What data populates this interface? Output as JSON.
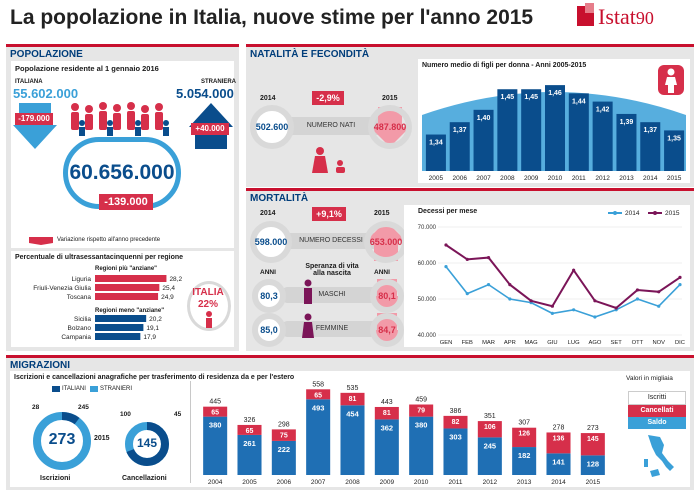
{
  "title": "La popolazione in Italia, nuove stime per l'anno 2015",
  "logo": {
    "text": "Istat",
    "mark": "90"
  },
  "popolazione": {
    "header": "POPOLAZIONE",
    "subtitle": "Popolazione residente al 1 gennaio 2016",
    "italiana_label": "ITALIANA",
    "italiana_value": "55.602.000",
    "italiana_change": "-179.000",
    "straniera_label": "STRANIERA",
    "straniera_value": "5.054.000",
    "straniera_change": "+40.000",
    "total": "60.656.000",
    "total_change": "-139.000",
    "legend": "Variazione rispetto all'anno precedente",
    "over65_title": "Percentuale di ultrasessantacinquenni per regione",
    "more_old_label": "Regioni più \"anziane\"",
    "less_old_label": "Regioni meno \"anziane\"",
    "more_old": [
      {
        "region": "Liguria",
        "value": "28,2",
        "v": 28.2
      },
      {
        "region": "Friuli-Venezia Giulia",
        "value": "25,4",
        "v": 25.4
      },
      {
        "region": "Toscana",
        "value": "24,9",
        "v": 24.9
      }
    ],
    "less_old": [
      {
        "region": "Sicilia",
        "value": "20,2",
        "v": 20.2
      },
      {
        "region": "Bolzano",
        "value": "19,1",
        "v": 19.1
      },
      {
        "region": "Campania",
        "value": "17,9",
        "v": 17.9
      }
    ],
    "italia_label": "ITALIA",
    "italia_value": "22%"
  },
  "natalita": {
    "header": "NATALITÀ E FECONDITÀ",
    "year_a": "2014",
    "year_b": "2015",
    "change": "-2,9%",
    "value_2014": "502.600",
    "label": "NUMERO NATI",
    "value_2015": "487.800"
  },
  "mortalita": {
    "header": "MORTALITÀ",
    "year_a": "2014",
    "year_b": "2015",
    "change": "+9,1%",
    "value_2014": "598.000",
    "label": "NUMERO DECESSI",
    "value_2015": "653.000",
    "life_title": "Speranza di vita alla nascita",
    "anni": "ANNI",
    "maschi_2014": "80,3",
    "maschi_label": "MASCHI",
    "maschi_2015": "80,1",
    "femmine_2014": "85,0",
    "femmine_label": "FEMMINE",
    "femmine_2015": "84,7"
  },
  "migrazioni": {
    "header": "MIGRAZIONI",
    "subtitle": "Iscrizioni e cancellazioni anagrafiche per trasferimento di residenza da e per l'estero",
    "italiani_label": "ITALIANI",
    "stranieri_label": "STRANIERI",
    "iscrizioni": {
      "total": "273",
      "italiani": "28",
      "stranieri": "245",
      "label": "Iscrizioni"
    },
    "cancellazioni": {
      "total": "145",
      "italiani": "100",
      "stranieri": "45",
      "label": "Cancellazioni"
    },
    "donut_year": "2015",
    "legend_units": "Valori in migliaia",
    "legend_iscritti": "Iscritti",
    "legend_cancellati": "Cancellati",
    "legend_saldo": "Saldo"
  },
  "colors": {
    "red": "#d62f4a",
    "blue": "#0a4d8c",
    "lightblue": "#3aa0d8",
    "purple": "#7b1558",
    "gray": "#e6e6e6"
  },
  "chart_data": [
    {
      "type": "bar",
      "title": "Numero medio di figli per donna - Anni 2005-2015",
      "categories": [
        "2005",
        "2006",
        "2007",
        "2008",
        "2009",
        "2010",
        "2011",
        "2012",
        "2013",
        "2014",
        "2015"
      ],
      "values": [
        1.34,
        1.37,
        1.4,
        1.45,
        1.45,
        1.46,
        1.44,
        1.42,
        1.39,
        1.37,
        1.35
      ],
      "labels": [
        "1,34",
        "1,37",
        "1,40",
        "1,45",
        "1,45",
        "1,46",
        "1,44",
        "1,42",
        "1,39",
        "1,37",
        "1,35"
      ]
    },
    {
      "type": "line",
      "title": "Decessi per mese",
      "categories": [
        "GEN",
        "FEB",
        "MAR",
        "APR",
        "MAG",
        "GIU",
        "LUG",
        "AGO",
        "SET",
        "OTT",
        "NOV",
        "DIC"
      ],
      "yticks": [
        "70.000",
        "60.000",
        "50.000",
        "40.000"
      ],
      "ylim": [
        40000,
        70000
      ],
      "series": [
        {
          "name": "2014",
          "values": [
            59000,
            51500,
            54000,
            50000,
            49000,
            46000,
            47000,
            45000,
            47000,
            50000,
            48000,
            54000
          ]
        },
        {
          "name": "2015",
          "values": [
            65000,
            61000,
            61500,
            54000,
            49500,
            48000,
            58000,
            49500,
            47500,
            52500,
            52000,
            56000
          ]
        }
      ]
    },
    {
      "type": "bar",
      "title": "Iscrizioni e cancellazioni anagrafiche per trasferimento di residenza da e per l'estero",
      "categories": [
        "2004",
        "2005",
        "2006",
        "2007",
        "2008",
        "2009",
        "2010",
        "2011",
        "2012",
        "2013",
        "2014",
        "2015"
      ],
      "series": [
        {
          "name": "Saldo",
          "values": [
            380,
            261,
            222,
            493,
            454,
            362,
            380,
            303,
            245,
            182,
            141,
            128
          ]
        },
        {
          "name": "Cancellati",
          "values": [
            65,
            65,
            75,
            65,
            81,
            81,
            79,
            82,
            106,
            126,
            136,
            145
          ]
        },
        {
          "name": "Iscritti",
          "values": [
            445,
            326,
            298,
            558,
            535,
            443,
            459,
            386,
            351,
            307,
            278,
            273
          ]
        }
      ]
    }
  ]
}
